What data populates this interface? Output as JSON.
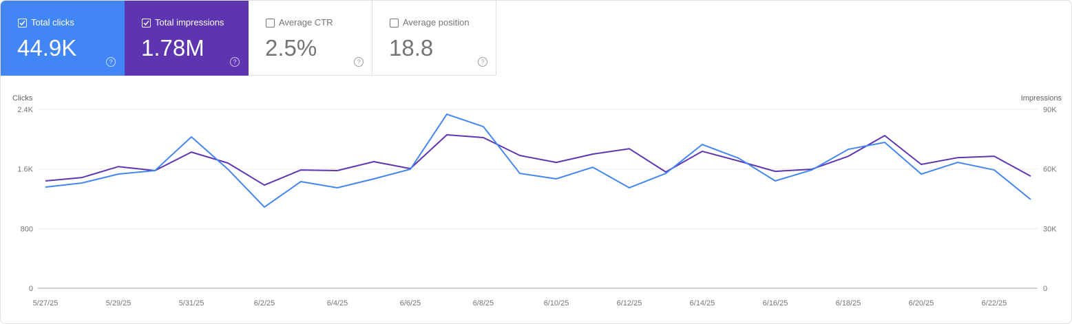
{
  "cards": [
    {
      "label": "Total clicks",
      "value": "44.9K",
      "checked": true,
      "color": "#4285f4"
    },
    {
      "label": "Total impressions",
      "value": "1.78M",
      "checked": true,
      "color": "#5e35b1"
    },
    {
      "label": "Average CTR",
      "value": "2.5%",
      "checked": false,
      "color": "#ffffff"
    },
    {
      "label": "Average position",
      "value": "18.8",
      "checked": false,
      "color": "#ffffff"
    }
  ],
  "help_glyph": "?",
  "chart_data": {
    "type": "line",
    "x": [
      "5/27/25",
      "5/28/25",
      "5/29/25",
      "5/30/25",
      "5/31/25",
      "6/1/25",
      "6/2/25",
      "6/3/25",
      "6/4/25",
      "6/5/25",
      "6/6/25",
      "6/7/25",
      "6/8/25",
      "6/9/25",
      "6/10/25",
      "6/11/25",
      "6/12/25",
      "6/13/25",
      "6/14/25",
      "6/15/25",
      "6/16/25",
      "6/17/25",
      "6/18/25",
      "6/19/25",
      "6/20/25",
      "6/21/25",
      "6/22/25",
      "6/23/25"
    ],
    "x_tick_labels": [
      "5/27/25",
      "5/29/25",
      "5/31/25",
      "6/2/25",
      "6/4/25",
      "6/6/25",
      "6/8/25",
      "6/10/25",
      "6/12/25",
      "6/14/25",
      "6/16/25",
      "6/18/25",
      "6/20/25",
      "6/22/25"
    ],
    "ylabel_left": "Clicks",
    "ylabel_right": "Impressions",
    "y_left_ticks": [
      "0",
      "800",
      "1.6K",
      "2.4K"
    ],
    "y_right_ticks": [
      "0",
      "30K",
      "60K",
      "90K"
    ],
    "ylim_left": [
      0,
      2400
    ],
    "ylim_right": [
      0,
      90000
    ],
    "grid": true,
    "series": [
      {
        "name": "Clicks",
        "axis": "left",
        "color": "#4285f4",
        "values": [
          1357,
          1412,
          1532,
          1578,
          2031,
          1597,
          1089,
          1431,
          1348,
          1468,
          1597,
          2335,
          2169,
          1541,
          1468,
          1624,
          1348,
          1541,
          1929,
          1744,
          1440,
          1587,
          1864,
          1957,
          1532,
          1689,
          1587,
          1191
        ]
      },
      {
        "name": "Impressions",
        "axis": "right",
        "color": "#5e35b1",
        "values": [
          54000,
          55700,
          61200,
          59200,
          68500,
          63000,
          51900,
          59500,
          59200,
          63700,
          60200,
          77200,
          75800,
          66800,
          63300,
          67500,
          70200,
          58500,
          68900,
          64000,
          58800,
          59900,
          66400,
          76800,
          62300,
          65700,
          66400,
          56400
        ]
      }
    ]
  }
}
